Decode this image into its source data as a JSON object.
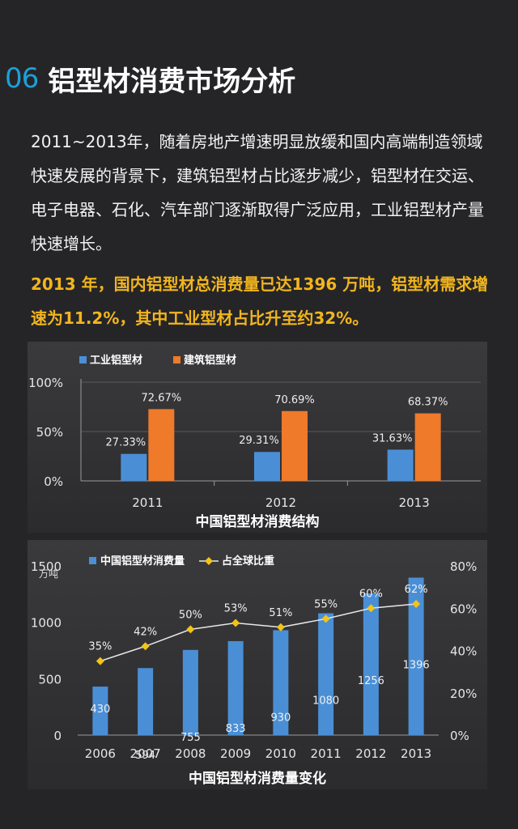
{
  "header": {
    "number": "06",
    "title": "铝型材消费市场分析"
  },
  "paragraph": "2011~2013年，随着房地产增速明显放缓和国内高端制造领域快速发展的背景下，建筑铝型材占比逐步减少，铝型材在交运、电子电器、石化、汽车部门逐渐取得广泛应用，工业铝型材产量快速增长。",
  "highlight": "2013 年，国内铝型材总消费量已达1396 万吨，铝型材需求增速为11.2%，其中工业型材占比升至约32%。",
  "chart_data": [
    {
      "type": "bar",
      "title": "中国铝型材消费结构",
      "categories": [
        "2011",
        "2012",
        "2013"
      ],
      "series": [
        {
          "name": "工业铝型材",
          "values": [
            27.33,
            29.31,
            31.63
          ],
          "labels": [
            "27.33%",
            "29.31%",
            "31.63%"
          ],
          "color": "#4a8fd6"
        },
        {
          "name": "建筑铝型材",
          "values": [
            72.67,
            70.69,
            68.37
          ],
          "labels": [
            "72.67%",
            "70.69%",
            "68.37%"
          ],
          "color": "#ee7a2a"
        }
      ],
      "yticks": [
        "0%",
        "50%",
        "100%"
      ],
      "ylim": [
        0,
        100
      ],
      "legend": "top-left",
      "grid": true
    },
    {
      "type": "bar",
      "title": "中国铝型材消费量变化",
      "categories": [
        "2006",
        "2007",
        "2008",
        "2009",
        "2010",
        "2011",
        "2012",
        "2013"
      ],
      "series": [
        {
          "name": "中国铝型材消费量",
          "type": "bar",
          "axis": "left",
          "values": [
            430,
            594,
            755,
            833,
            930,
            1080,
            1256,
            1396
          ],
          "color": "#4a8fd6"
        },
        {
          "name": "占全球比重",
          "type": "line",
          "axis": "right",
          "values": [
            35,
            42,
            50,
            53,
            51,
            55,
            60,
            62
          ],
          "labels": [
            "35%",
            "42%",
            "50%",
            "53%",
            "51%",
            "55%",
            "60%",
            "62%"
          ],
          "color": "#f2c418"
        }
      ],
      "ylabel": "万吨",
      "ylim": [
        0,
        1500
      ],
      "yticks": [
        "0",
        "500",
        "1000",
        "1500"
      ],
      "y2lim": [
        0,
        80
      ],
      "y2ticks": [
        "0%",
        "20%",
        "40%",
        "60%",
        "80%"
      ],
      "legend": "top",
      "grid": false
    }
  ]
}
